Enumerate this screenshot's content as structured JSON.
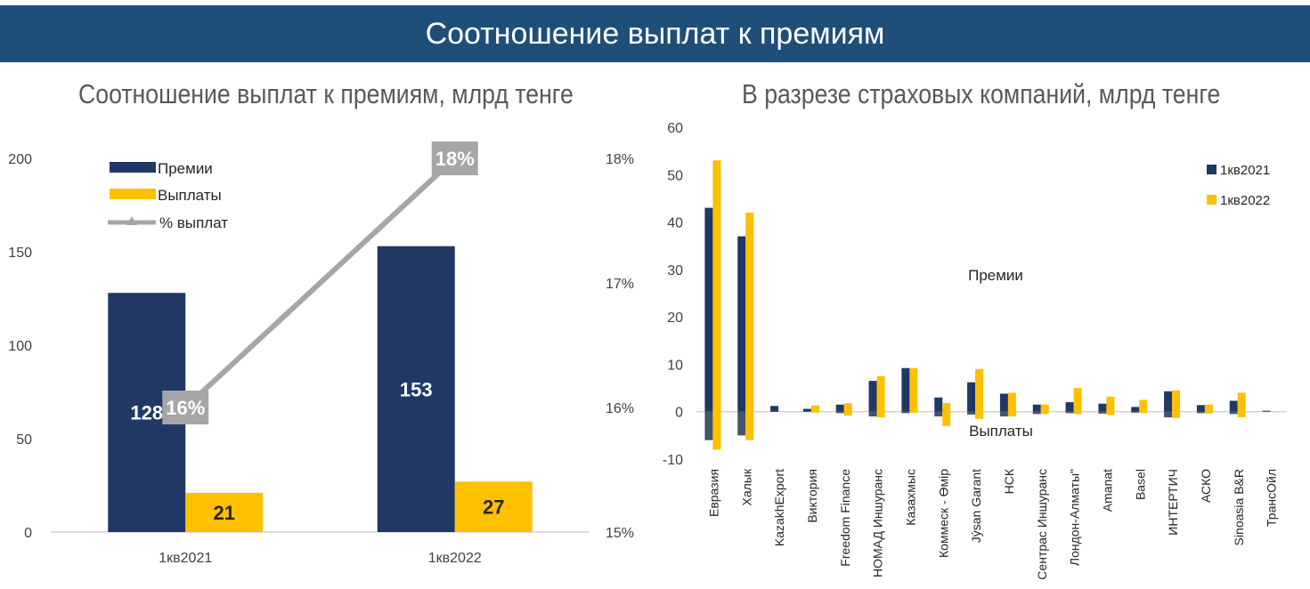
{
  "header": {
    "title": "Соотношение выплат к премиям"
  },
  "chart_data": [
    {
      "type": "bar",
      "title": "Соотношение выплат к премиям, млрд тенге",
      "categories": [
        "1кв2021",
        "1кв2022"
      ],
      "series": [
        {
          "name": "Премии",
          "values": [
            128,
            153
          ],
          "color": "#203864",
          "axis": "left"
        },
        {
          "name": "Выплаты",
          "values": [
            21,
            27
          ],
          "color": "#ffc000",
          "axis": "left"
        },
        {
          "name": "% выплат",
          "type": "line",
          "values": [
            16,
            18
          ],
          "labels": [
            "16%",
            "18%"
          ],
          "color": "#a6a6a6",
          "axis": "right"
        }
      ],
      "data_labels": {
        "Премии": [
          "128",
          "153"
        ],
        "Выплаты": [
          "21",
          "27"
        ]
      },
      "ylim": [
        0,
        200
      ],
      "yticks": [
        "0",
        "50",
        "100",
        "150",
        "200"
      ],
      "y2lim": [
        15,
        18
      ],
      "y2ticks": [
        "15%",
        "16%",
        "17%",
        "18%"
      ],
      "legend": "top-left",
      "grid": false
    },
    {
      "type": "bar",
      "title": "В разрезе страховых компаний, млрд тенге",
      "categories": [
        "Евразия",
        "Халык",
        "KazakhExport",
        "Виктория",
        "Freedom Finance",
        "НОМАД Иншуранс",
        "Казахмыс",
        "Коммеск - Өмір",
        "Jýsan Garant",
        "НСК",
        "Сентрас Иншуранс",
        "Лондон-Алматы\"",
        "Amanat",
        "Basel",
        "ИНТЕРТИЧ",
        "АСКО",
        "Sinoasia B&R",
        "ТрансОйл"
      ],
      "series": [
        {
          "name": "1кв2021",
          "color": "#203864",
          "premiums": [
            43,
            37,
            1.2,
            0.6,
            1.5,
            6.5,
            9.2,
            3.0,
            6.2,
            3.8,
            1.5,
            2.0,
            1.7,
            1.0,
            4.3,
            1.4,
            2.3,
            0.2
          ],
          "payouts": [
            -6,
            -5,
            0,
            0,
            -0.3,
            -1.0,
            -0.3,
            -1.0,
            -0.6,
            -1.0,
            -0.5,
            -0.3,
            -0.4,
            -0.2,
            -1.2,
            -0.3,
            -0.5,
            0
          ]
        },
        {
          "name": "1кв2022",
          "color": "#ffc000",
          "premiums": [
            53,
            42,
            0,
            1.3,
            1.8,
            7.5,
            9.2,
            1.8,
            9.0,
            4.0,
            1.5,
            5.0,
            3.2,
            2.5,
            4.5,
            1.5,
            4.0,
            0
          ],
          "payouts": [
            -8,
            -6,
            0,
            -0.2,
            -0.8,
            -1.2,
            -0.2,
            -3.0,
            -1.5,
            -1.0,
            -0.5,
            -0.5,
            -0.7,
            -0.3,
            -1.3,
            -0.4,
            -1.2,
            0
          ]
        }
      ],
      "annotations": [
        "Премии",
        "Выплаты"
      ],
      "ylim": [
        -10,
        60
      ],
      "yticks": [
        "-10",
        "0",
        "10",
        "20",
        "30",
        "40",
        "50",
        "60"
      ],
      "legend": "top-right",
      "grid": false
    }
  ]
}
